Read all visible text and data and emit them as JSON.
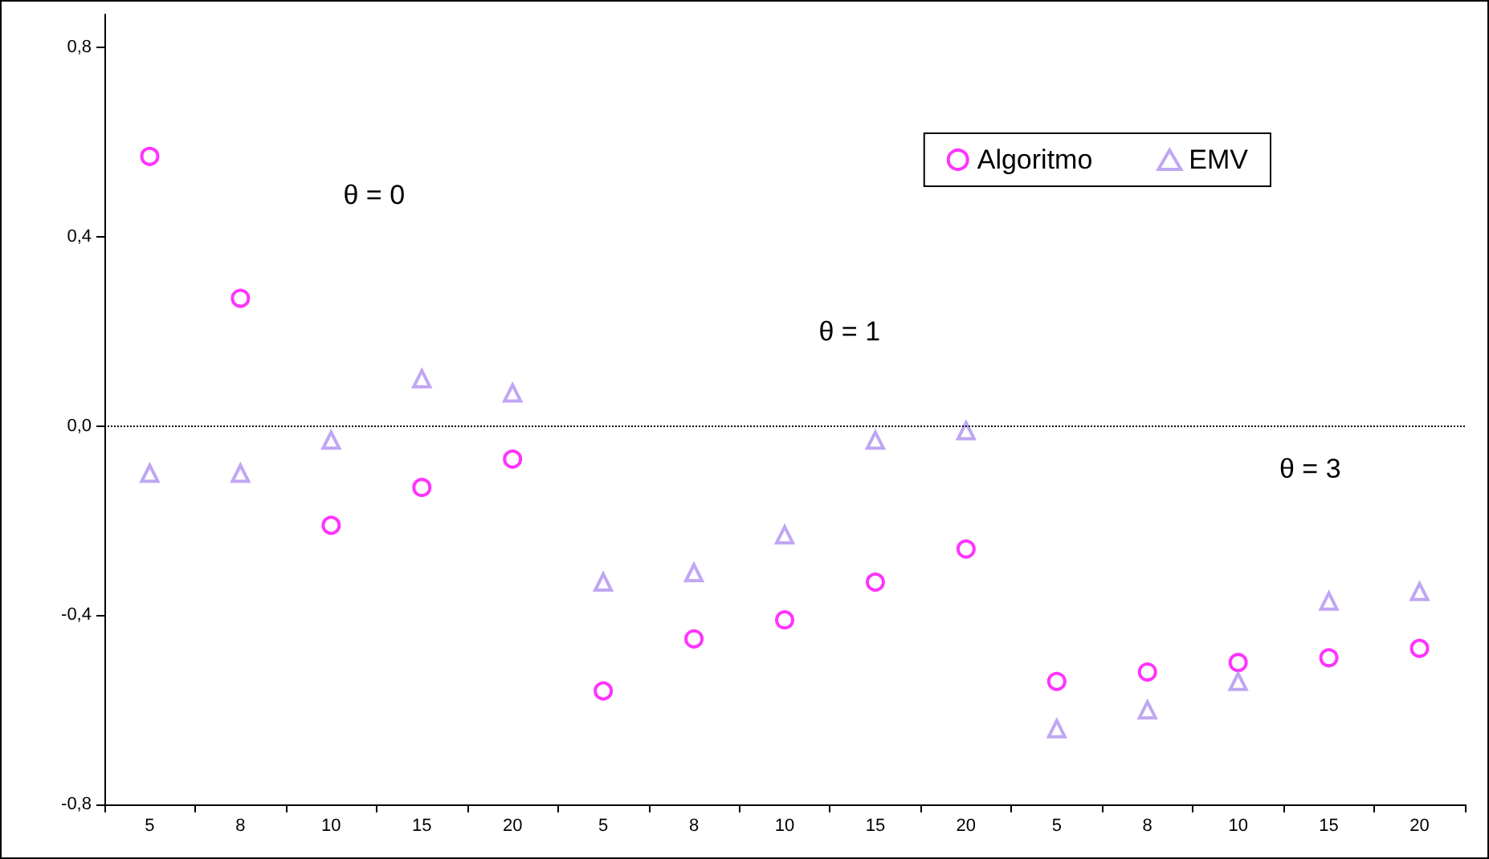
{
  "chart_data": {
    "type": "scatter",
    "categories": [
      "5",
      "8",
      "10",
      "15",
      "20",
      "5",
      "8",
      "10",
      "15",
      "20",
      "5",
      "8",
      "10",
      "15",
      "20"
    ],
    "series": [
      {
        "name": "Algoritmo",
        "color": "#ff00ff",
        "marker": "circle",
        "values": [
          0.57,
          0.27,
          -0.21,
          -0.13,
          -0.07,
          -0.56,
          -0.45,
          -0.41,
          -0.33,
          -0.26,
          -0.54,
          -0.52,
          -0.5,
          -0.49,
          -0.47
        ]
      },
      {
        "name": "EMV",
        "color": "#b090f0",
        "marker": "triangle",
        "values": [
          -0.1,
          -0.1,
          -0.03,
          0.1,
          0.07,
          -0.33,
          -0.31,
          -0.23,
          -0.03,
          -0.01,
          -0.64,
          -0.6,
          -0.54,
          -0.37,
          -0.35
        ]
      }
    ],
    "ylim": [
      -0.8,
      0.87
    ],
    "yticks": [
      {
        "value": 0.8,
        "label": "0,8"
      },
      {
        "value": 0.4,
        "label": "0,4"
      },
      {
        "value": 0,
        "label": "0,0"
      },
      {
        "value": -0.4,
        "label": "-0,4"
      },
      {
        "value": -0.8,
        "label": "-0,8"
      }
    ],
    "ref_lines": [
      {
        "axis": "y",
        "value": 0,
        "line_style": "dotted",
        "color": "#000000"
      }
    ],
    "annotations": [
      "θ = 0",
      "θ = 1",
      "θ = 3"
    ],
    "legend": "top right",
    "grid": false
  }
}
